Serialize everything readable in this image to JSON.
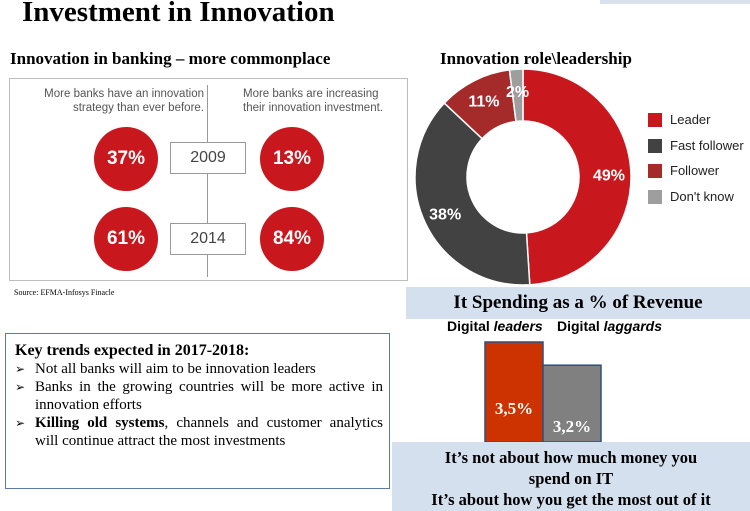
{
  "title": "Investment in Innovation",
  "left_section": {
    "heading": "Innovation in banking – more commonplace",
    "caption_left": "More banks have an innovation strategy than ever before.",
    "caption_right": "More banks are increasing their innovation investment.",
    "rows": [
      {
        "year": "2009",
        "left_value": "37%",
        "right_value": "13%"
      },
      {
        "year": "2014",
        "left_value": "61%",
        "right_value": "84%"
      }
    ],
    "source": "Source: EFMA-Infosys Finacle"
  },
  "trends": {
    "heading": "Key trends expected in 2017-2018:",
    "items": [
      {
        "bold": "",
        "text": "Not all banks will aim to be innovation leaders"
      },
      {
        "bold": "",
        "text": "Banks in the growing countries will be more active in innovation efforts"
      },
      {
        "bold": "Killing old systems",
        "text": ", channels and customer analytics will continue attract the most investments"
      }
    ]
  },
  "spending": {
    "banner": "It Spending as a % of Revenue",
    "leaders_label": "Digital leaders",
    "laggards_label": "Digital laggards",
    "quote_line1": "It’s not about how much money you",
    "quote_line2": "spend on IT",
    "quote_line3": "It’s about how you get the most out of it"
  },
  "chart_data": [
    {
      "type": "pie",
      "variant": "donut",
      "title": "Innovation role\\leadership",
      "categories": [
        "Leader",
        "Fast follower",
        "Follower",
        "Don't know"
      ],
      "values": [
        49,
        38,
        11,
        2
      ],
      "labels": [
        "49%",
        "38%",
        "11%",
        "2%"
      ],
      "colors": [
        "#c8171d",
        "#424242",
        "#a52a2a",
        "#9e9e9e"
      ],
      "legend_position": "right"
    },
    {
      "type": "bar",
      "title": "It Spending as a % of Revenue",
      "categories": [
        "Digital leaders",
        "Digital laggards"
      ],
      "values": [
        3.5,
        3.2
      ],
      "labels": [
        "3,5%",
        "3,2%"
      ],
      "colors": [
        "#cc3300",
        "#808080"
      ]
    }
  ]
}
